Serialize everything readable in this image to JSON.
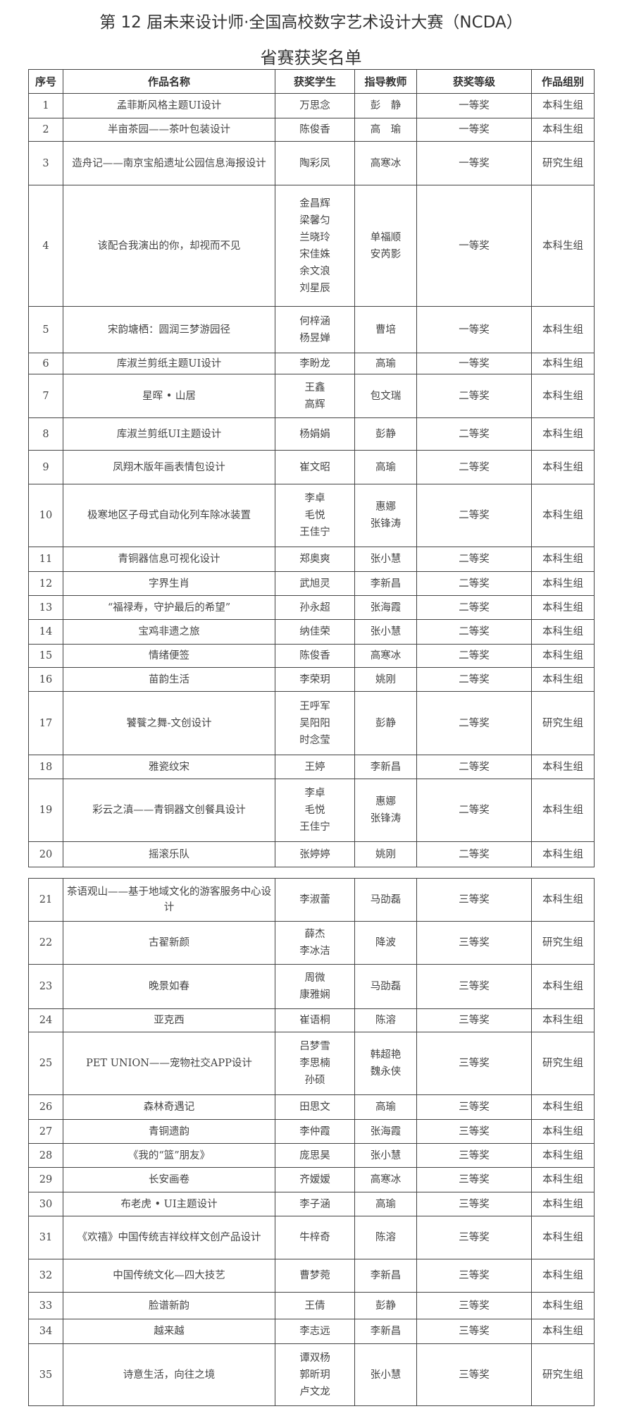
{
  "title": "第 12 届未来设计师·全国高校数字艺术设计大赛（NCDA）",
  "subtitle": "省赛获奖名单",
  "headers": [
    "序号",
    "作品名称",
    "获奖学生",
    "指导教师",
    "获奖等级",
    "作品组别"
  ],
  "rows": [
    {
      "no": "1",
      "work": "孟菲斯风格主题UI设计",
      "students": [
        "万思念"
      ],
      "teachers": [
        "彭　静"
      ],
      "award": "一等奖",
      "group": "本科生组"
    },
    {
      "no": "2",
      "work": "半亩茶园——茶叶包装设计",
      "students": [
        "陈俊香"
      ],
      "teachers": [
        "高　瑜"
      ],
      "award": "一等奖",
      "group": "本科生组"
    },
    {
      "no": "3",
      "work": "造舟记——南京宝船遗址公园信息海报设计",
      "students": [
        "陶彩凤"
      ],
      "teachers": [
        "高寒冰"
      ],
      "award": "一等奖",
      "group": "研究生组"
    },
    {
      "no": "4",
      "work": "该配合我演出的你，却视而不见",
      "students": [
        "金昌辉",
        "梁馨匀",
        "兰晓玲",
        "宋佳姝",
        "余文浪",
        "刘星辰"
      ],
      "teachers": [
        "单福顺",
        "安芮影"
      ],
      "award": "一等奖",
      "group": "本科生组"
    },
    {
      "no": "5",
      "work": "宋韵塘栖：圆润三梦游园径",
      "students": [
        "何梓涵",
        "杨昱婵"
      ],
      "teachers": [
        "曹培"
      ],
      "award": "一等奖",
      "group": "本科生组"
    },
    {
      "no": "6",
      "work": "库淑兰剪纸主题UI设计",
      "students": [
        "李盼龙"
      ],
      "teachers": [
        "高瑜"
      ],
      "award": "一等奖",
      "group": "本科生组"
    },
    {
      "no": "7",
      "work": "星晖 • 山居",
      "students": [
        "王鑫",
        "高辉"
      ],
      "teachers": [
        "包文瑞"
      ],
      "award": "二等奖",
      "group": "本科生组"
    },
    {
      "no": "8",
      "work": "库淑兰剪纸UI主题设计",
      "students": [
        "杨娟娟"
      ],
      "teachers": [
        "彭静"
      ],
      "award": "二等奖",
      "group": "本科生组"
    },
    {
      "no": "9",
      "work": "凤翔木版年画表情包设计",
      "students": [
        "崔文昭"
      ],
      "teachers": [
        "高瑜"
      ],
      "award": "二等奖",
      "group": "本科生组"
    },
    {
      "no": "10",
      "work": "极寒地区子母式自动化列车除冰装置",
      "students": [
        "李卓",
        "毛悦",
        "王佳宁"
      ],
      "teachers": [
        "惠娜",
        "张锋涛"
      ],
      "award": "二等奖",
      "group": "本科生组"
    },
    {
      "no": "11",
      "work": "青铜器信息可视化设计",
      "students": [
        "郑奥爽"
      ],
      "teachers": [
        "张小慧"
      ],
      "award": "二等奖",
      "group": "本科生组"
    },
    {
      "no": "12",
      "work": "字界生肖",
      "students": [
        "武旭灵"
      ],
      "teachers": [
        "李新昌"
      ],
      "award": "二等奖",
      "group": "本科生组"
    },
    {
      "no": "13",
      "work": "“福禄寿，守护最后的希望”",
      "students": [
        "孙永超"
      ],
      "teachers": [
        "张海霞"
      ],
      "award": "二等奖",
      "group": "本科生组"
    },
    {
      "no": "14",
      "work": "宝鸡非遗之旅",
      "students": [
        "纳佳荣"
      ],
      "teachers": [
        "张小慧"
      ],
      "award": "二等奖",
      "group": "本科生组"
    },
    {
      "no": "15",
      "work": "情绪便签",
      "students": [
        "陈俊香"
      ],
      "teachers": [
        "高寒冰"
      ],
      "award": "二等奖",
      "group": "本科生组"
    },
    {
      "no": "16",
      "work": "苗韵生活",
      "students": [
        "李荣玥"
      ],
      "teachers": [
        "姚刚"
      ],
      "award": "二等奖",
      "group": "本科生组"
    },
    {
      "no": "17",
      "work": "饕餮之舞-文创设计",
      "students": [
        "王呼军",
        "吴阳阳",
        "时念莹"
      ],
      "teachers": [
        "彭静"
      ],
      "award": "二等奖",
      "group": "研究生组"
    },
    {
      "no": "18",
      "work": "雅瓷纹宋",
      "students": [
        "王婷"
      ],
      "teachers": [
        "李新昌"
      ],
      "award": "二等奖",
      "group": "本科生组"
    },
    {
      "no": "19",
      "work": "彩云之滇——青铜器文创餐具设计",
      "students": [
        "李卓",
        "毛悦",
        "王佳宁"
      ],
      "teachers": [
        "惠娜",
        "张锋涛"
      ],
      "award": "二等奖",
      "group": "本科生组"
    },
    {
      "no": "20",
      "work": "摇滚乐队",
      "students": [
        "张婷婷"
      ],
      "teachers": [
        "姚刚"
      ],
      "award": "二等奖",
      "group": "本科生组"
    },
    {
      "no": "21",
      "work": "茶语观山——基于地域文化的游客服务中心设计",
      "students": [
        "李淑蕾"
      ],
      "teachers": [
        "马劭磊"
      ],
      "award": "三等奖",
      "group": "本科生组"
    },
    {
      "no": "22",
      "work": "古翟新颜",
      "students": [
        "薛杰",
        "李冰洁"
      ],
      "teachers": [
        "降波"
      ],
      "award": "三等奖",
      "group": "研究生组"
    },
    {
      "no": "23",
      "work": "晚景如春",
      "students": [
        "周微",
        "康雅娴"
      ],
      "teachers": [
        "马劭磊"
      ],
      "award": "三等奖",
      "group": "本科生组"
    },
    {
      "no": "24",
      "work": "亚克西",
      "students": [
        "崔语桐"
      ],
      "teachers": [
        "陈溶"
      ],
      "award": "三等奖",
      "group": "本科生组"
    },
    {
      "no": "25",
      "work": "PET UNION——宠物社交APP设计",
      "students": [
        "吕梦雪",
        "李思楠",
        "孙硕"
      ],
      "teachers": [
        "韩超艳",
        "魏永侠"
      ],
      "award": "三等奖",
      "group": "研究生组"
    },
    {
      "no": "26",
      "work": "森林奇遇记",
      "students": [
        "田思文"
      ],
      "teachers": [
        "高瑜"
      ],
      "award": "三等奖",
      "group": "本科生组"
    },
    {
      "no": "27",
      "work": "青铜遗韵",
      "students": [
        "李仲霞"
      ],
      "teachers": [
        "张海霞"
      ],
      "award": "三等奖",
      "group": "本科生组"
    },
    {
      "no": "28",
      "work": "《我的“篮”朋友》",
      "students": [
        "庞思昊"
      ],
      "teachers": [
        "张小慧"
      ],
      "award": "三等奖",
      "group": "本科生组"
    },
    {
      "no": "29",
      "work": "长安画卷",
      "students": [
        "齐嫒嫒"
      ],
      "teachers": [
        "高寒冰"
      ],
      "award": "三等奖",
      "group": "本科生组"
    },
    {
      "no": "30",
      "work": "布老虎 • UI主题设计",
      "students": [
        "李子涵"
      ],
      "teachers": [
        "高瑜"
      ],
      "award": "三等奖",
      "group": "本科生组"
    },
    {
      "no": "31",
      "work": "《欢禧》中国传统吉祥纹样文创产品设计",
      "students": [
        "牛梓奇"
      ],
      "teachers": [
        "陈溶"
      ],
      "award": "三等奖",
      "group": "本科生组"
    },
    {
      "no": "32",
      "work": "中国传统文化—四大技艺",
      "students": [
        "曹梦菀"
      ],
      "teachers": [
        "李新昌"
      ],
      "award": "三等奖",
      "group": "本科生组"
    },
    {
      "no": "33",
      "work": "脸谱新韵",
      "students": [
        "王倩"
      ],
      "teachers": [
        "彭静"
      ],
      "award": "三等奖",
      "group": "本科生组"
    },
    {
      "no": "34",
      "work": "越来越",
      "students": [
        "李志远"
      ],
      "teachers": [
        "李新昌"
      ],
      "award": "三等奖",
      "group": "本科生组"
    },
    {
      "no": "35",
      "work": "诗意生活，向往之境",
      "students": [
        "谭双杨",
        "郭昕玥",
        "卢文龙"
      ],
      "teachers": [
        "张小慧"
      ],
      "award": "三等奖",
      "group": "研究生组"
    }
  ]
}
